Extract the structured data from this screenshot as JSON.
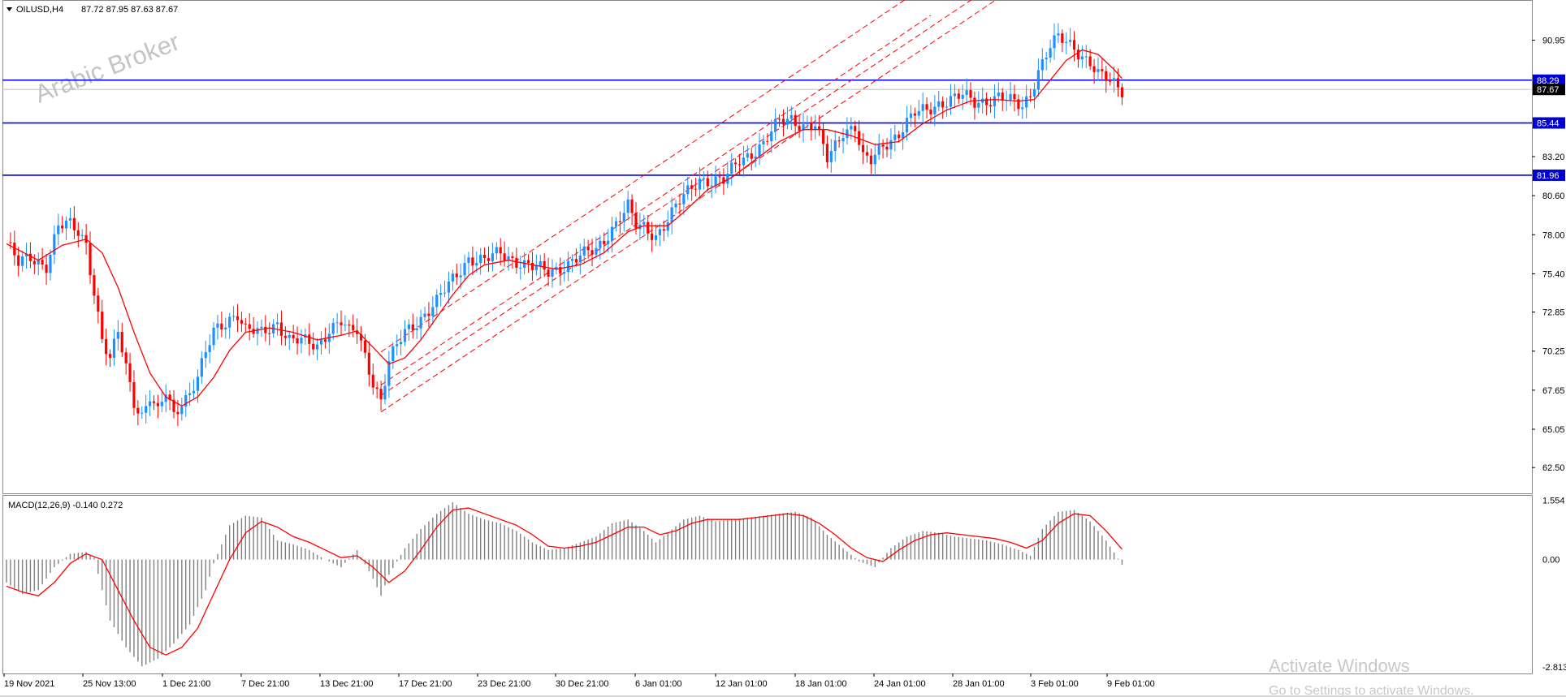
{
  "header": {
    "symbol": "OILUSD,H4",
    "ohlc": "87.72 87.95 87.63 87.67",
    "watermark": "Arabic Broker"
  },
  "indicator": {
    "label": "MACD(12,26,9) -0.140 0.272"
  },
  "windows_notice": {
    "title": "Activate Windows",
    "subtitle": "Go to Settings to activate Windows."
  },
  "colors": {
    "bull": "#1e90ff",
    "bear": "#ff0000",
    "ma": "#ff0000",
    "channel": "#ff0000",
    "hline": "#0000ff",
    "macd_hist": "#808080",
    "macd_signal": "#ff0000",
    "price_tag_bg": "#0000cd",
    "current_tag_bg": "#000000"
  },
  "chart_data": [
    {
      "type": "candlestick",
      "title": "OILUSD,H4",
      "ylim": [
        61.0,
        93.3
      ],
      "y_ticks": [
        "90.95",
        "88.29",
        "87.67",
        "85.44",
        "83.20",
        "80.60",
        "78.00",
        "75.40",
        "72.85",
        "70.25",
        "67.65",
        "65.05",
        "62.50"
      ],
      "y_tick_values": [
        90.95,
        83.2,
        80.6,
        78.0,
        75.4,
        72.85,
        70.25,
        67.65,
        65.05,
        62.5
      ],
      "x_tick_labels": [
        "19 Nov 2021",
        "25 Nov 13:00",
        "1 Dec 21:00",
        "7 Dec 21:00",
        "13 Dec 21:00",
        "17 Dec 21:00",
        "23 Dec 21:00",
        "30 Dec 21:00",
        "6 Jan 01:00",
        "12 Jan 01:00",
        "18 Jan 01:00",
        "24 Jan 01:00",
        "28 Jan 01:00",
        "3 Feb 01:00",
        "9 Feb 01:00"
      ],
      "horizontal_levels": [
        {
          "value": 88.29,
          "label": "88.29"
        },
        {
          "value": 85.44,
          "label": "85.44"
        },
        {
          "value": 81.96,
          "label": "81.96"
        }
      ],
      "current_price": {
        "value": 87.67,
        "label": "87.67"
      },
      "close_path": [
        [
          0,
          77.5
        ],
        [
          3,
          76.0
        ],
        [
          6,
          76.5
        ],
        [
          10,
          76.0
        ],
        [
          13,
          78.5
        ],
        [
          16,
          78.6
        ],
        [
          18,
          78.2
        ],
        [
          20,
          77.5
        ],
        [
          24,
          71.0
        ],
        [
          26,
          69.5
        ],
        [
          28,
          71.5
        ],
        [
          32,
          67.0
        ],
        [
          34,
          66.0
        ],
        [
          36,
          67.2
        ],
        [
          38,
          66.0
        ],
        [
          40,
          67.5
        ],
        [
          42,
          66.0
        ],
        [
          44,
          67.0
        ],
        [
          46,
          67.5
        ],
        [
          48,
          68.5
        ],
        [
          52,
          71.5
        ],
        [
          56,
          72.5
        ],
        [
          58,
          72.8
        ],
        [
          60,
          71.6
        ],
        [
          64,
          71.4
        ],
        [
          68,
          72.2
        ],
        [
          71,
          71.0
        ],
        [
          75,
          70.8
        ],
        [
          78,
          70.6
        ],
        [
          81,
          71.8
        ],
        [
          84,
          72.2
        ],
        [
          86,
          71.4
        ],
        [
          88,
          71.6
        ],
        [
          90,
          70.0
        ],
        [
          92,
          68.3
        ],
        [
          94,
          67.0
        ],
        [
          96,
          69.5
        ],
        [
          100,
          71.5
        ],
        [
          104,
          72.5
        ],
        [
          108,
          73.5
        ],
        [
          112,
          75.0
        ],
        [
          116,
          76.5
        ],
        [
          120,
          76.2
        ],
        [
          124,
          76.8
        ],
        [
          128,
          76.3
        ],
        [
          132,
          75.8
        ],
        [
          136,
          75.5
        ],
        [
          140,
          76.0
        ],
        [
          144,
          76.5
        ],
        [
          148,
          77.0
        ],
        [
          152,
          78.5
        ],
        [
          156,
          79.8
        ],
        [
          158,
          78.5
        ],
        [
          160,
          78.5
        ],
        [
          163,
          78.0
        ],
        [
          166,
          79.0
        ],
        [
          170,
          80.5
        ],
        [
          174,
          81.8
        ],
        [
          177,
          81.6
        ],
        [
          180,
          81.5
        ],
        [
          184,
          83.0
        ],
        [
          187,
          83.5
        ],
        [
          190,
          84.0
        ],
        [
          194,
          85.5
        ],
        [
          197,
          85.8
        ],
        [
          200,
          85.3
        ],
        [
          203,
          85.2
        ],
        [
          206,
          83.0
        ],
        [
          208,
          84.0
        ],
        [
          210,
          85.0
        ],
        [
          213,
          85.2
        ],
        [
          215,
          83.0
        ],
        [
          217,
          82.8
        ],
        [
          220,
          84.0
        ],
        [
          224,
          84.8
        ],
        [
          228,
          86.0
        ],
        [
          231,
          86.3
        ],
        [
          234,
          86.8
        ],
        [
          237,
          87.0
        ],
        [
          240,
          87.2
        ],
        [
          243,
          86.8
        ],
        [
          246,
          87.0
        ],
        [
          249,
          87.2
        ],
        [
          252,
          86.8
        ],
        [
          255,
          86.5
        ],
        [
          257,
          87.5
        ],
        [
          259,
          89.0
        ],
        [
          261,
          90.0
        ],
        [
          262,
          90.5
        ],
        [
          264,
          91.0
        ],
        [
          266,
          90.8
        ],
        [
          268,
          90.5
        ],
        [
          270,
          90.0
        ],
        [
          272,
          89.5
        ],
        [
          274,
          88.6
        ],
        [
          276,
          88.3
        ],
        [
          278,
          88.0
        ],
        [
          280,
          87.67
        ]
      ],
      "moving_average": [
        [
          0,
          77.4
        ],
        [
          8,
          76.3
        ],
        [
          14,
          77.3
        ],
        [
          20,
          77.7
        ],
        [
          24,
          76.8
        ],
        [
          28,
          74.5
        ],
        [
          32,
          71.5
        ],
        [
          36,
          68.8
        ],
        [
          40,
          67.2
        ],
        [
          44,
          66.6
        ],
        [
          48,
          67.2
        ],
        [
          52,
          68.5
        ],
        [
          56,
          70.3
        ],
        [
          60,
          71.5
        ],
        [
          66,
          71.8
        ],
        [
          72,
          71.5
        ],
        [
          78,
          71.0
        ],
        [
          84,
          71.3
        ],
        [
          88,
          71.6
        ],
        [
          92,
          70.5
        ],
        [
          96,
          69.4
        ],
        [
          100,
          69.8
        ],
        [
          104,
          71.0
        ],
        [
          108,
          72.5
        ],
        [
          112,
          74.0
        ],
        [
          116,
          75.3
        ],
        [
          120,
          76.0
        ],
        [
          126,
          76.3
        ],
        [
          132,
          76.0
        ],
        [
          138,
          75.7
        ],
        [
          144,
          76.0
        ],
        [
          150,
          76.8
        ],
        [
          156,
          78.2
        ],
        [
          160,
          78.6
        ],
        [
          166,
          78.6
        ],
        [
          170,
          79.5
        ],
        [
          176,
          81.0
        ],
        [
          182,
          81.8
        ],
        [
          188,
          83.0
        ],
        [
          194,
          84.2
        ],
        [
          200,
          85.0
        ],
        [
          206,
          85.0
        ],
        [
          212,
          84.6
        ],
        [
          218,
          84.0
        ],
        [
          224,
          84.2
        ],
        [
          230,
          85.4
        ],
        [
          236,
          86.3
        ],
        [
          242,
          86.9
        ],
        [
          248,
          87.0
        ],
        [
          254,
          86.9
        ],
        [
          258,
          87.0
        ],
        [
          262,
          88.3
        ],
        [
          266,
          89.6
        ],
        [
          270,
          90.3
        ],
        [
          274,
          90.0
        ],
        [
          278,
          89.0
        ],
        [
          280,
          88.4
        ]
      ],
      "channel_lines": [
        {
          "from": [
            94,
            70.2
          ],
          "to": [
            232,
            94.8
          ]
        },
        {
          "from": [
            94,
            68.0
          ],
          "to": [
            232,
            92.6
          ]
        },
        {
          "from": [
            94,
            66.2
          ],
          "to": [
            260,
            95.7
          ]
        },
        {
          "from": [
            94,
            67.3
          ],
          "to": [
            260,
            96.8
          ]
        }
      ]
    },
    {
      "type": "bar",
      "title": "MACD(12,26,9) -0.140 0.272",
      "ylim": [
        -2.9,
        1.65
      ],
      "y_ticks": [
        "1.554",
        "0.00",
        "-2.813"
      ],
      "y_tick_values": [
        1.554,
        0.0,
        -2.813
      ],
      "histogram": [
        [
          0,
          -0.6
        ],
        [
          4,
          -0.9
        ],
        [
          8,
          -0.8
        ],
        [
          12,
          -0.2
        ],
        [
          16,
          0.15
        ],
        [
          20,
          0.2
        ],
        [
          22,
          0.05
        ],
        [
          24,
          -0.8
        ],
        [
          26,
          -1.6
        ],
        [
          30,
          -2.3
        ],
        [
          34,
          -2.8
        ],
        [
          38,
          -2.6
        ],
        [
          42,
          -2.2
        ],
        [
          46,
          -1.7
        ],
        [
          50,
          -0.8
        ],
        [
          52,
          -0.1
        ],
        [
          56,
          0.9
        ],
        [
          60,
          1.15
        ],
        [
          64,
          1.1
        ],
        [
          68,
          0.5
        ],
        [
          72,
          0.4
        ],
        [
          76,
          0.25
        ],
        [
          80,
          0.0
        ],
        [
          84,
          -0.2
        ],
        [
          88,
          0.25
        ],
        [
          92,
          -0.5
        ],
        [
          94,
          -0.95
        ],
        [
          96,
          -0.4
        ],
        [
          100,
          0.3
        ],
        [
          104,
          0.8
        ],
        [
          108,
          1.2
        ],
        [
          112,
          1.5
        ],
        [
          116,
          1.2
        ],
        [
          120,
          1.05
        ],
        [
          124,
          0.95
        ],
        [
          128,
          0.75
        ],
        [
          132,
          0.45
        ],
        [
          136,
          0.25
        ],
        [
          140,
          0.3
        ],
        [
          144,
          0.45
        ],
        [
          148,
          0.6
        ],
        [
          152,
          0.95
        ],
        [
          156,
          1.05
        ],
        [
          160,
          0.75
        ],
        [
          163,
          0.45
        ],
        [
          166,
          0.7
        ],
        [
          170,
          1.05
        ],
        [
          174,
          1.15
        ],
        [
          178,
          1.0
        ],
        [
          182,
          1.05
        ],
        [
          186,
          1.1
        ],
        [
          190,
          1.15
        ],
        [
          194,
          1.2
        ],
        [
          198,
          1.25
        ],
        [
          202,
          1.1
        ],
        [
          206,
          0.65
        ],
        [
          210,
          0.3
        ],
        [
          214,
          -0.05
        ],
        [
          218,
          -0.2
        ],
        [
          222,
          0.3
        ],
        [
          226,
          0.6
        ],
        [
          230,
          0.75
        ],
        [
          234,
          0.7
        ],
        [
          238,
          0.6
        ],
        [
          242,
          0.55
        ],
        [
          246,
          0.5
        ],
        [
          250,
          0.4
        ],
        [
          254,
          0.25
        ],
        [
          257,
          0.1
        ],
        [
          260,
          0.8
        ],
        [
          264,
          1.25
        ],
        [
          268,
          1.3
        ],
        [
          272,
          1.0
        ],
        [
          276,
          0.5
        ],
        [
          280,
          -0.14
        ]
      ],
      "signal": [
        [
          0,
          -0.7
        ],
        [
          4,
          -0.85
        ],
        [
          8,
          -0.95
        ],
        [
          12,
          -0.6
        ],
        [
          16,
          -0.1
        ],
        [
          20,
          0.15
        ],
        [
          24,
          0.0
        ],
        [
          28,
          -0.8
        ],
        [
          32,
          -1.6
        ],
        [
          36,
          -2.3
        ],
        [
          40,
          -2.5
        ],
        [
          44,
          -2.3
        ],
        [
          48,
          -1.8
        ],
        [
          52,
          -0.9
        ],
        [
          56,
          0.0
        ],
        [
          60,
          0.7
        ],
        [
          64,
          1.0
        ],
        [
          68,
          0.85
        ],
        [
          72,
          0.6
        ],
        [
          76,
          0.45
        ],
        [
          80,
          0.25
        ],
        [
          84,
          0.05
        ],
        [
          88,
          0.1
        ],
        [
          92,
          -0.2
        ],
        [
          96,
          -0.6
        ],
        [
          100,
          -0.3
        ],
        [
          104,
          0.25
        ],
        [
          108,
          0.85
        ],
        [
          112,
          1.3
        ],
        [
          116,
          1.35
        ],
        [
          120,
          1.2
        ],
        [
          124,
          1.05
        ],
        [
          128,
          0.9
        ],
        [
          132,
          0.65
        ],
        [
          136,
          0.35
        ],
        [
          140,
          0.3
        ],
        [
          144,
          0.35
        ],
        [
          148,
          0.45
        ],
        [
          152,
          0.65
        ],
        [
          156,
          0.85
        ],
        [
          160,
          0.85
        ],
        [
          164,
          0.65
        ],
        [
          168,
          0.75
        ],
        [
          172,
          0.95
        ],
        [
          176,
          1.05
        ],
        [
          180,
          1.05
        ],
        [
          184,
          1.05
        ],
        [
          188,
          1.1
        ],
        [
          192,
          1.15
        ],
        [
          196,
          1.2
        ],
        [
          200,
          1.15
        ],
        [
          204,
          0.95
        ],
        [
          208,
          0.65
        ],
        [
          212,
          0.3
        ],
        [
          216,
          0.05
        ],
        [
          220,
          -0.05
        ],
        [
          224,
          0.25
        ],
        [
          228,
          0.5
        ],
        [
          232,
          0.65
        ],
        [
          236,
          0.7
        ],
        [
          240,
          0.65
        ],
        [
          244,
          0.6
        ],
        [
          248,
          0.55
        ],
        [
          252,
          0.45
        ],
        [
          256,
          0.3
        ],
        [
          260,
          0.5
        ],
        [
          264,
          0.95
        ],
        [
          268,
          1.2
        ],
        [
          272,
          1.15
        ],
        [
          276,
          0.75
        ],
        [
          280,
          0.27
        ]
      ]
    }
  ]
}
